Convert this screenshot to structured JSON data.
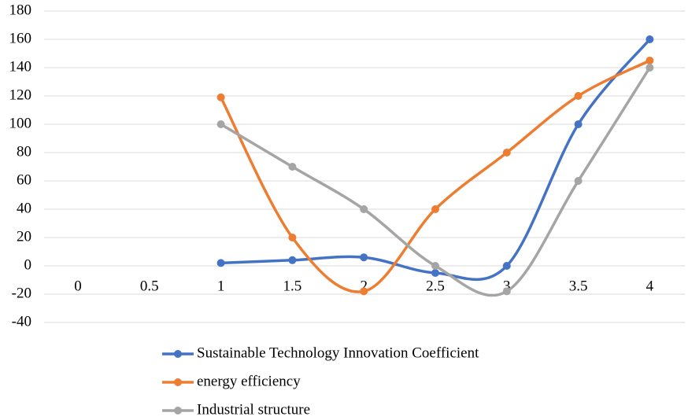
{
  "chart_data": {
    "type": "line",
    "title": "",
    "xlabel": "",
    "ylabel": "",
    "x_ticks": [
      "0",
      "0.5",
      "1",
      "1.5",
      "2",
      "2.5",
      "3",
      "3.5",
      "4"
    ],
    "y_ticks": [
      "180",
      "160",
      "140",
      "120",
      "100",
      "80",
      "60",
      "40",
      "20",
      "0",
      "-20",
      "-40"
    ],
    "xlim": [
      0,
      4
    ],
    "ylim": [
      -40,
      180
    ],
    "grid": true,
    "smooth": true,
    "legend_position": "bottom",
    "series": [
      {
        "name": "Sustainable Technology Innovation Coefficient",
        "color": "#4472c4",
        "x": [
          1,
          1.5,
          2,
          2.5,
          3,
          3.5,
          4
        ],
        "values": [
          2,
          4,
          6,
          -5,
          0,
          100,
          160
        ]
      },
      {
        "name": "energy efficiency",
        "color": "#ed7d31",
        "x": [
          1,
          1.5,
          2,
          2.5,
          3,
          3.5,
          4
        ],
        "values": [
          119,
          20,
          -18,
          40,
          80,
          120,
          145
        ]
      },
      {
        "name": "Industrial structure",
        "color": "#a5a5a5",
        "x": [
          1,
          1.5,
          2,
          2.5,
          3,
          3.5,
          4
        ],
        "values": [
          100,
          70,
          40,
          0,
          -18,
          60,
          140
        ]
      }
    ]
  }
}
